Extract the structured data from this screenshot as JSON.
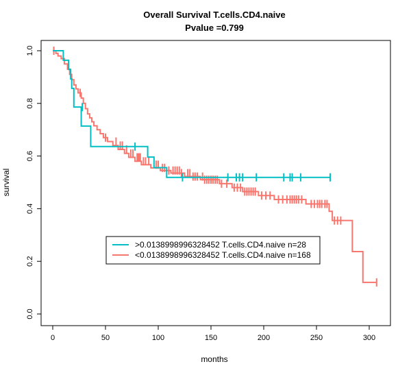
{
  "chart_data": {
    "type": "line",
    "title": "Overall Survival T.cells.CD4.naive",
    "subtitle": "Pvalue =0.799",
    "xlabel": "months",
    "ylabel": "survival",
    "xlim": [
      0,
      310
    ],
    "ylim": [
      0,
      1
    ],
    "x_ticks": [
      "0",
      "50",
      "100",
      "150",
      "200",
      "250",
      "300"
    ],
    "y_ticks": [
      "0.0",
      "0.2",
      "0.4",
      "0.6",
      "0.8",
      "1.0"
    ],
    "grid": false,
    "legend_position": "center-left",
    "series": [
      {
        "name": ">0.0138998996328452 T.cells.CD4.naive n=28",
        "color": "#00BFC4",
        "steps": [
          [
            0,
            1.0
          ],
          [
            10,
            1.0
          ],
          [
            10,
            0.964
          ],
          [
            15,
            0.964
          ],
          [
            15,
            0.929
          ],
          [
            17,
            0.929
          ],
          [
            17,
            0.893
          ],
          [
            18,
            0.893
          ],
          [
            18,
            0.857
          ],
          [
            20,
            0.857
          ],
          [
            20,
            0.786
          ],
          [
            27,
            0.786
          ],
          [
            27,
            0.714
          ],
          [
            36,
            0.714
          ],
          [
            36,
            0.636
          ],
          [
            90,
            0.636
          ],
          [
            90,
            0.596
          ],
          [
            96,
            0.596
          ],
          [
            96,
            0.556
          ],
          [
            108,
            0.556
          ],
          [
            108,
            0.519
          ],
          [
            263,
            0.519
          ]
        ],
        "censors": [
          [
            28,
            0.786
          ],
          [
            78,
            0.636
          ],
          [
            123,
            0.519
          ],
          [
            166,
            0.519
          ],
          [
            174,
            0.519
          ],
          [
            177,
            0.519
          ],
          [
            180,
            0.519
          ],
          [
            193,
            0.519
          ],
          [
            219,
            0.519
          ],
          [
            225,
            0.519
          ],
          [
            227,
            0.519
          ],
          [
            235,
            0.519
          ],
          [
            263,
            0.519
          ]
        ]
      },
      {
        "name": "<0.0138998996328452 T.cells.CD4.naive n=168",
        "color": "#F8766D",
        "steps": [
          [
            0,
            1.0
          ],
          [
            3,
            1.0
          ],
          [
            3,
            0.99
          ],
          [
            5,
            0.99
          ],
          [
            5,
            0.98
          ],
          [
            8,
            0.98
          ],
          [
            8,
            0.97
          ],
          [
            11,
            0.97
          ],
          [
            11,
            0.95
          ],
          [
            14,
            0.95
          ],
          [
            14,
            0.93
          ],
          [
            16,
            0.93
          ],
          [
            16,
            0.91
          ],
          [
            18,
            0.91
          ],
          [
            18,
            0.89
          ],
          [
            20,
            0.89
          ],
          [
            20,
            0.87
          ],
          [
            22,
            0.87
          ],
          [
            22,
            0.855
          ],
          [
            24,
            0.855
          ],
          [
            24,
            0.84
          ],
          [
            27,
            0.84
          ],
          [
            27,
            0.82
          ],
          [
            29,
            0.82
          ],
          [
            29,
            0.8
          ],
          [
            31,
            0.8
          ],
          [
            31,
            0.78
          ],
          [
            33,
            0.78
          ],
          [
            33,
            0.76
          ],
          [
            35,
            0.76
          ],
          [
            35,
            0.745
          ],
          [
            37,
            0.745
          ],
          [
            37,
            0.73
          ],
          [
            39,
            0.73
          ],
          [
            39,
            0.715
          ],
          [
            42,
            0.715
          ],
          [
            42,
            0.7
          ],
          [
            45,
            0.7
          ],
          [
            45,
            0.685
          ],
          [
            48,
            0.685
          ],
          [
            48,
            0.67
          ],
          [
            52,
            0.67
          ],
          [
            52,
            0.655
          ],
          [
            57,
            0.655
          ],
          [
            57,
            0.64
          ],
          [
            62,
            0.64
          ],
          [
            62,
            0.625
          ],
          [
            68,
            0.625
          ],
          [
            68,
            0.61
          ],
          [
            72,
            0.61
          ],
          [
            72,
            0.595
          ],
          [
            78,
            0.595
          ],
          [
            78,
            0.58
          ],
          [
            84,
            0.58
          ],
          [
            84,
            0.567
          ],
          [
            93,
            0.567
          ],
          [
            93,
            0.555
          ],
          [
            102,
            0.555
          ],
          [
            102,
            0.545
          ],
          [
            112,
            0.545
          ],
          [
            112,
            0.535
          ],
          [
            125,
            0.535
          ],
          [
            125,
            0.522
          ],
          [
            140,
            0.522
          ],
          [
            140,
            0.51
          ],
          [
            158,
            0.51
          ],
          [
            158,
            0.495
          ],
          [
            170,
            0.495
          ],
          [
            170,
            0.48
          ],
          [
            180,
            0.48
          ],
          [
            180,
            0.465
          ],
          [
            195,
            0.465
          ],
          [
            195,
            0.45
          ],
          [
            210,
            0.45
          ],
          [
            210,
            0.435
          ],
          [
            240,
            0.435
          ],
          [
            240,
            0.418
          ],
          [
            262,
            0.418
          ],
          [
            262,
            0.39
          ],
          [
            265,
            0.39
          ],
          [
            265,
            0.355
          ],
          [
            284,
            0.355
          ],
          [
            284,
            0.237
          ],
          [
            294,
            0.237
          ],
          [
            294,
            0.12
          ],
          [
            307,
            0.12
          ]
        ],
        "censors": [
          [
            1,
            1.0
          ],
          [
            26,
            0.84
          ],
          [
            50,
            0.67
          ],
          [
            60,
            0.655
          ],
          [
            64,
            0.64
          ],
          [
            66,
            0.64
          ],
          [
            70,
            0.625
          ],
          [
            74,
            0.61
          ],
          [
            76,
            0.61
          ],
          [
            80,
            0.595
          ],
          [
            81,
            0.595
          ],
          [
            82,
            0.595
          ],
          [
            83,
            0.595
          ],
          [
            86,
            0.58
          ],
          [
            88,
            0.58
          ],
          [
            91,
            0.58
          ],
          [
            98,
            0.567
          ],
          [
            100,
            0.567
          ],
          [
            104,
            0.555
          ],
          [
            106,
            0.555
          ],
          [
            110,
            0.545
          ],
          [
            114,
            0.545
          ],
          [
            116,
            0.545
          ],
          [
            118,
            0.545
          ],
          [
            120,
            0.545
          ],
          [
            122,
            0.535
          ],
          [
            128,
            0.535
          ],
          [
            130,
            0.535
          ],
          [
            133,
            0.522
          ],
          [
            135,
            0.522
          ],
          [
            137,
            0.522
          ],
          [
            142,
            0.522
          ],
          [
            144,
            0.51
          ],
          [
            146,
            0.51
          ],
          [
            148,
            0.51
          ],
          [
            150,
            0.51
          ],
          [
            152,
            0.51
          ],
          [
            154,
            0.51
          ],
          [
            156,
            0.51
          ],
          [
            160,
            0.495
          ],
          [
            165,
            0.495
          ],
          [
            172,
            0.48
          ],
          [
            175,
            0.48
          ],
          [
            178,
            0.48
          ],
          [
            182,
            0.465
          ],
          [
            184,
            0.465
          ],
          [
            186,
            0.465
          ],
          [
            188,
            0.465
          ],
          [
            190,
            0.465
          ],
          [
            192,
            0.465
          ],
          [
            198,
            0.45
          ],
          [
            202,
            0.45
          ],
          [
            206,
            0.45
          ],
          [
            214,
            0.435
          ],
          [
            218,
            0.435
          ],
          [
            222,
            0.435
          ],
          [
            225,
            0.435
          ],
          [
            227,
            0.435
          ],
          [
            229,
            0.435
          ],
          [
            231,
            0.435
          ],
          [
            233,
            0.435
          ],
          [
            236,
            0.435
          ],
          [
            245,
            0.418
          ],
          [
            248,
            0.418
          ],
          [
            251,
            0.418
          ],
          [
            253,
            0.418
          ],
          [
            255,
            0.418
          ],
          [
            258,
            0.418
          ],
          [
            260,
            0.418
          ],
          [
            267,
            0.355
          ],
          [
            270,
            0.355
          ],
          [
            273,
            0.355
          ],
          [
            307,
            0.12
          ]
        ]
      }
    ]
  }
}
